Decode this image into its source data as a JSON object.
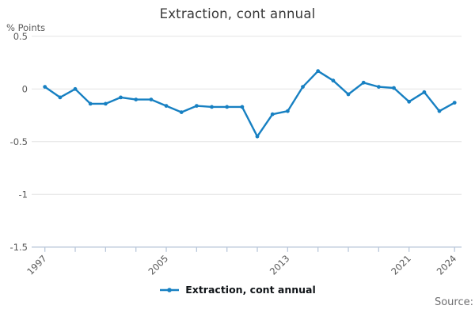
{
  "header": {
    "title": "Extraction, cont annual"
  },
  "axes": {
    "y_unit_label": "% Points"
  },
  "legend": {
    "label": "Extraction, cont annual"
  },
  "footer": {
    "source_label": "Source:"
  },
  "chart_data": {
    "type": "line",
    "title": "Extraction, cont annual",
    "xlabel": "",
    "ylabel": "% Points",
    "ylim": [
      -1.5,
      0.5
    ],
    "grid": true,
    "legend_position": "bottom",
    "x": [
      1997,
      1998,
      1999,
      2000,
      2001,
      2002,
      2003,
      2004,
      2005,
      2006,
      2007,
      2008,
      2009,
      2010,
      2011,
      2012,
      2013,
      2014,
      2015,
      2016,
      2017,
      2018,
      2019,
      2020,
      2021,
      2022,
      2023,
      2024
    ],
    "series": [
      {
        "name": "Extraction, cont annual",
        "values": [
          0.02,
          -0.08,
          0.0,
          -0.14,
          -0.14,
          -0.08,
          -0.1,
          -0.1,
          -0.16,
          -0.22,
          -0.16,
          -0.17,
          -0.17,
          -0.17,
          -0.45,
          -0.24,
          -0.21,
          0.02,
          0.17,
          0.08,
          -0.05,
          0.06,
          0.02,
          0.01,
          -0.12,
          -0.03,
          -0.21,
          -0.13
        ]
      }
    ],
    "yticks": [
      {
        "value": 0.5,
        "label": "0.5"
      },
      {
        "value": 0,
        "label": "0"
      },
      {
        "value": -0.5,
        "label": "-0.5"
      },
      {
        "value": -1,
        "label": "-1"
      },
      {
        "value": -1.5,
        "label": "-1.5"
      }
    ],
    "xticks": [
      {
        "year": 1997,
        "label": "1997"
      },
      {
        "year": 1999,
        "label": ""
      },
      {
        "year": 2001,
        "label": ""
      },
      {
        "year": 2003,
        "label": ""
      },
      {
        "year": 2005,
        "label": "2005"
      },
      {
        "year": 2007,
        "label": ""
      },
      {
        "year": 2009,
        "label": ""
      },
      {
        "year": 2011,
        "label": ""
      },
      {
        "year": 2013,
        "label": "2013"
      },
      {
        "year": 2015,
        "label": ""
      },
      {
        "year": 2017,
        "label": ""
      },
      {
        "year": 2019,
        "label": ""
      },
      {
        "year": 2021,
        "label": "2021"
      },
      {
        "year": 2024,
        "label": "2024"
      }
    ],
    "colors": {
      "line": "#1780c2",
      "grid": "#e4e4e4",
      "axis": "#b9c7da",
      "tick_text": "#595959"
    }
  }
}
